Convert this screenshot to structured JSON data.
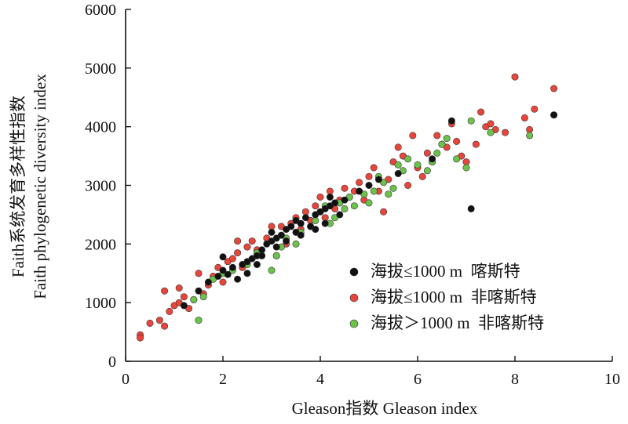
{
  "chart_data": {
    "type": "scatter",
    "xlabel": "Gleason指数 Gleason index",
    "ylabel_line1": "Faith系统发育多样性指数",
    "ylabel_line2": "Faith phylogenetic diversity index",
    "xlim": [
      0,
      10
    ],
    "ylim": [
      0,
      6000
    ],
    "x_ticks": [
      "0",
      "2",
      "4",
      "6",
      "8",
      "10"
    ],
    "y_ticks": [
      "0",
      "1000",
      "2000",
      "3000",
      "4000",
      "5000",
      "6000"
    ],
    "grid": false,
    "legend_position": "bottom-right",
    "series": [
      {
        "name": "海拔≤1000 m  喀斯特",
        "color": "#111111",
        "points": [
          [
            1.2,
            950
          ],
          [
            1.5,
            1200
          ],
          [
            1.7,
            1350
          ],
          [
            1.9,
            1450
          ],
          [
            2.0,
            1550
          ],
          [
            2.0,
            1780
          ],
          [
            2.1,
            1480
          ],
          [
            2.2,
            1600
          ],
          [
            2.3,
            1400
          ],
          [
            2.4,
            1650
          ],
          [
            2.5,
            1700
          ],
          [
            2.6,
            1750
          ],
          [
            2.7,
            1800
          ],
          [
            2.7,
            1650
          ],
          [
            2.8,
            1900
          ],
          [
            2.9,
            2000
          ],
          [
            3.0,
            2050
          ],
          [
            3.0,
            2200
          ],
          [
            3.1,
            2100
          ],
          [
            3.2,
            2150
          ],
          [
            3.3,
            2250
          ],
          [
            3.4,
            2300
          ],
          [
            3.5,
            2200
          ],
          [
            3.5,
            2400
          ],
          [
            3.6,
            2350
          ],
          [
            3.7,
            2450
          ],
          [
            3.8,
            2300
          ],
          [
            3.9,
            2500
          ],
          [
            4.0,
            2550
          ],
          [
            4.1,
            2600
          ],
          [
            4.2,
            2650
          ],
          [
            4.2,
            2800
          ],
          [
            4.3,
            2700
          ],
          [
            4.4,
            2500
          ],
          [
            4.5,
            2750
          ],
          [
            4.8,
            2900
          ],
          [
            5.0,
            3000
          ],
          [
            5.2,
            3100
          ],
          [
            5.6,
            3200
          ],
          [
            6.3,
            3450
          ],
          [
            6.7,
            4100
          ],
          [
            7.1,
            2600
          ],
          [
            8.8,
            4200
          ],
          [
            2.5,
            1500
          ],
          [
            3.1,
            1950
          ],
          [
            3.3,
            2050
          ],
          [
            2.8,
            1800
          ],
          [
            3.6,
            2150
          ],
          [
            4.1,
            2350
          ],
          [
            3.9,
            2250
          ]
        ]
      },
      {
        "name": "海拔≤1000 m  非喀斯特",
        "color": "#e8463a",
        "points": [
          [
            0.3,
            450
          ],
          [
            0.3,
            400
          ],
          [
            0.5,
            650
          ],
          [
            0.7,
            700
          ],
          [
            0.8,
            600
          ],
          [
            0.8,
            1200
          ],
          [
            0.9,
            850
          ],
          [
            1.0,
            950
          ],
          [
            1.1,
            1000
          ],
          [
            1.1,
            1250
          ],
          [
            1.2,
            1100
          ],
          [
            1.3,
            900
          ],
          [
            1.4,
            1050
          ],
          [
            1.5,
            1500
          ],
          [
            1.6,
            1150
          ],
          [
            1.7,
            1300
          ],
          [
            1.8,
            1450
          ],
          [
            1.9,
            1600
          ],
          [
            2.0,
            1350
          ],
          [
            2.1,
            1700
          ],
          [
            2.2,
            1750
          ],
          [
            2.3,
            1850
          ],
          [
            2.3,
            2050
          ],
          [
            2.4,
            1600
          ],
          [
            2.5,
            1950
          ],
          [
            2.6,
            2050
          ],
          [
            2.7,
            1900
          ],
          [
            2.8,
            1800
          ],
          [
            2.9,
            2100
          ],
          [
            3.0,
            2300
          ],
          [
            3.1,
            1800
          ],
          [
            3.2,
            2300
          ],
          [
            3.3,
            2000
          ],
          [
            3.4,
            2350
          ],
          [
            3.5,
            2450
          ],
          [
            3.6,
            2250
          ],
          [
            3.7,
            2550
          ],
          [
            3.8,
            2400
          ],
          [
            3.9,
            2650
          ],
          [
            4.0,
            2800
          ],
          [
            4.1,
            2450
          ],
          [
            4.2,
            2900
          ],
          [
            4.3,
            2600
          ],
          [
            4.4,
            2750
          ],
          [
            4.5,
            2950
          ],
          [
            4.6,
            2800
          ],
          [
            4.7,
            2900
          ],
          [
            4.8,
            3050
          ],
          [
            4.9,
            2750
          ],
          [
            5.0,
            3150
          ],
          [
            5.1,
            3300
          ],
          [
            5.2,
            2900
          ],
          [
            5.3,
            2550
          ],
          [
            5.4,
            3100
          ],
          [
            5.5,
            3400
          ],
          [
            5.6,
            3650
          ],
          [
            5.7,
            3500
          ],
          [
            5.8,
            3000
          ],
          [
            5.9,
            3850
          ],
          [
            6.0,
            3300
          ],
          [
            6.1,
            3150
          ],
          [
            6.2,
            3550
          ],
          [
            6.3,
            3400
          ],
          [
            6.4,
            3850
          ],
          [
            6.5,
            3700
          ],
          [
            6.6,
            3650
          ],
          [
            6.7,
            4050
          ],
          [
            6.8,
            3750
          ],
          [
            6.9,
            3500
          ],
          [
            7.0,
            3400
          ],
          [
            7.2,
            3700
          ],
          [
            7.3,
            4250
          ],
          [
            7.4,
            4000
          ],
          [
            7.5,
            4050
          ],
          [
            7.6,
            3950
          ],
          [
            7.8,
            3900
          ],
          [
            8.0,
            4850
          ],
          [
            8.2,
            4150
          ],
          [
            8.3,
            3950
          ],
          [
            8.4,
            4300
          ],
          [
            8.8,
            4650
          ],
          [
            8.8,
            4200
          ]
        ]
      },
      {
        "name": "海拔＞1000 m  非喀斯特",
        "color": "#6cc24a",
        "points": [
          [
            1.4,
            1050
          ],
          [
            1.5,
            700
          ],
          [
            1.6,
            1100
          ],
          [
            1.8,
            1400
          ],
          [
            2.0,
            1500
          ],
          [
            2.2,
            1550
          ],
          [
            2.5,
            1650
          ],
          [
            2.7,
            1850
          ],
          [
            3.0,
            1550
          ],
          [
            3.1,
            1800
          ],
          [
            3.2,
            1950
          ],
          [
            3.3,
            2100
          ],
          [
            3.5,
            2000
          ],
          [
            3.6,
            2200
          ],
          [
            3.8,
            2300
          ],
          [
            3.9,
            2400
          ],
          [
            4.0,
            2550
          ],
          [
            4.1,
            2650
          ],
          [
            4.2,
            2350
          ],
          [
            4.3,
            2450
          ],
          [
            4.4,
            2700
          ],
          [
            4.5,
            2600
          ],
          [
            4.6,
            2800
          ],
          [
            4.7,
            2650
          ],
          [
            4.8,
            2900
          ],
          [
            4.9,
            2850
          ],
          [
            5.0,
            2700
          ],
          [
            5.1,
            2900
          ],
          [
            5.2,
            3150
          ],
          [
            5.3,
            3050
          ],
          [
            5.4,
            2850
          ],
          [
            5.5,
            2950
          ],
          [
            5.6,
            3350
          ],
          [
            5.7,
            3250
          ],
          [
            5.8,
            3450
          ],
          [
            6.0,
            3350
          ],
          [
            6.2,
            3250
          ],
          [
            6.3,
            3400
          ],
          [
            6.4,
            3550
          ],
          [
            6.5,
            3700
          ],
          [
            6.6,
            3800
          ],
          [
            6.8,
            3450
          ],
          [
            7.0,
            3300
          ],
          [
            7.1,
            4100
          ],
          [
            7.5,
            3900
          ],
          [
            8.3,
            3850
          ]
        ]
      }
    ]
  }
}
